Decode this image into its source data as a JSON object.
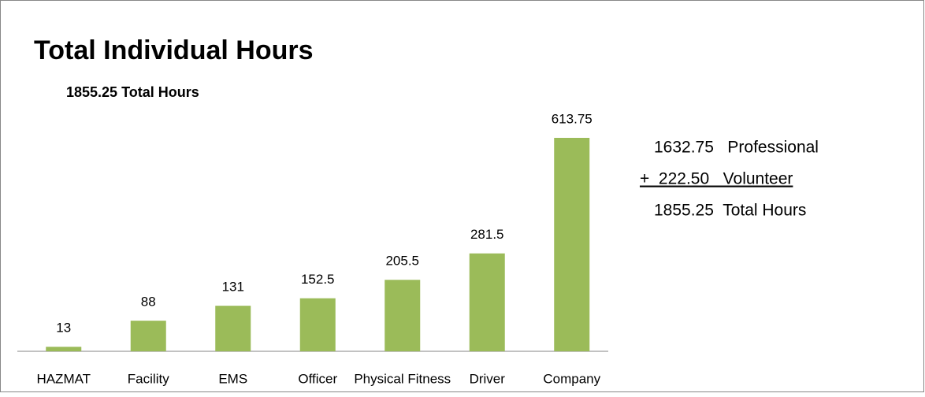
{
  "chart_data": {
    "type": "bar",
    "title": "Total Individual Hours",
    "subtitle": "1855.25 Total Hours",
    "categories": [
      "HAZMAT",
      "Facility",
      "EMS",
      "Officer",
      "Physical Fitness",
      "Driver",
      "Company"
    ],
    "values": [
      13,
      88,
      131,
      152.5,
      205.5,
      281.5,
      613.75
    ],
    "color": "#9bbb59",
    "annotations": [
      "1632.75   Professional",
      "+  222.50   Volunteer",
      "1855.25  Total Hours"
    ]
  }
}
